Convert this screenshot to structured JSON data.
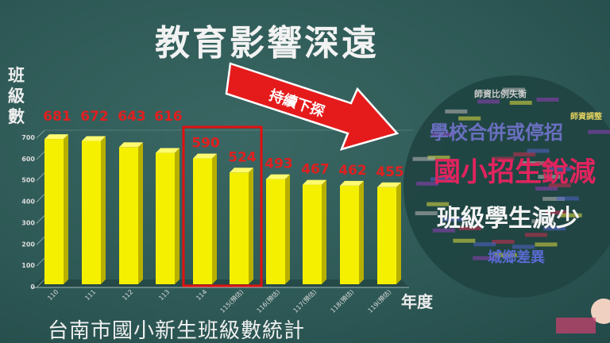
{
  "chart_data": {
    "type": "bar",
    "title": "教育影響深遠",
    "subtitle": "台南市國小新生班級數統計",
    "ylabel": "班級數",
    "xlabel": "年度",
    "categories": [
      "110",
      "111",
      "112",
      "113",
      "114",
      "115(預估)",
      "116(預估)",
      "117(預估)",
      "118(預估)",
      "119(預估)"
    ],
    "values": [
      681,
      672,
      643,
      616,
      590,
      524,
      493,
      467,
      462,
      455
    ],
    "yticks": [
      0,
      100,
      200,
      300,
      400,
      500,
      600,
      700
    ],
    "ylim": [
      0,
      700
    ],
    "bar_color": "#f5f000",
    "label_color": "#e02020",
    "highlight": {
      "categories": [
        "114",
        "115(預估)"
      ],
      "color": "#e01010"
    },
    "annotation": "持續下探",
    "grid": false
  },
  "wordcloud": {
    "words": [
      "國小招生銳減",
      "班級學生減少",
      "學校合併或停招",
      "城鄉差異",
      "師資比例失衡",
      "師資調整"
    ]
  }
}
